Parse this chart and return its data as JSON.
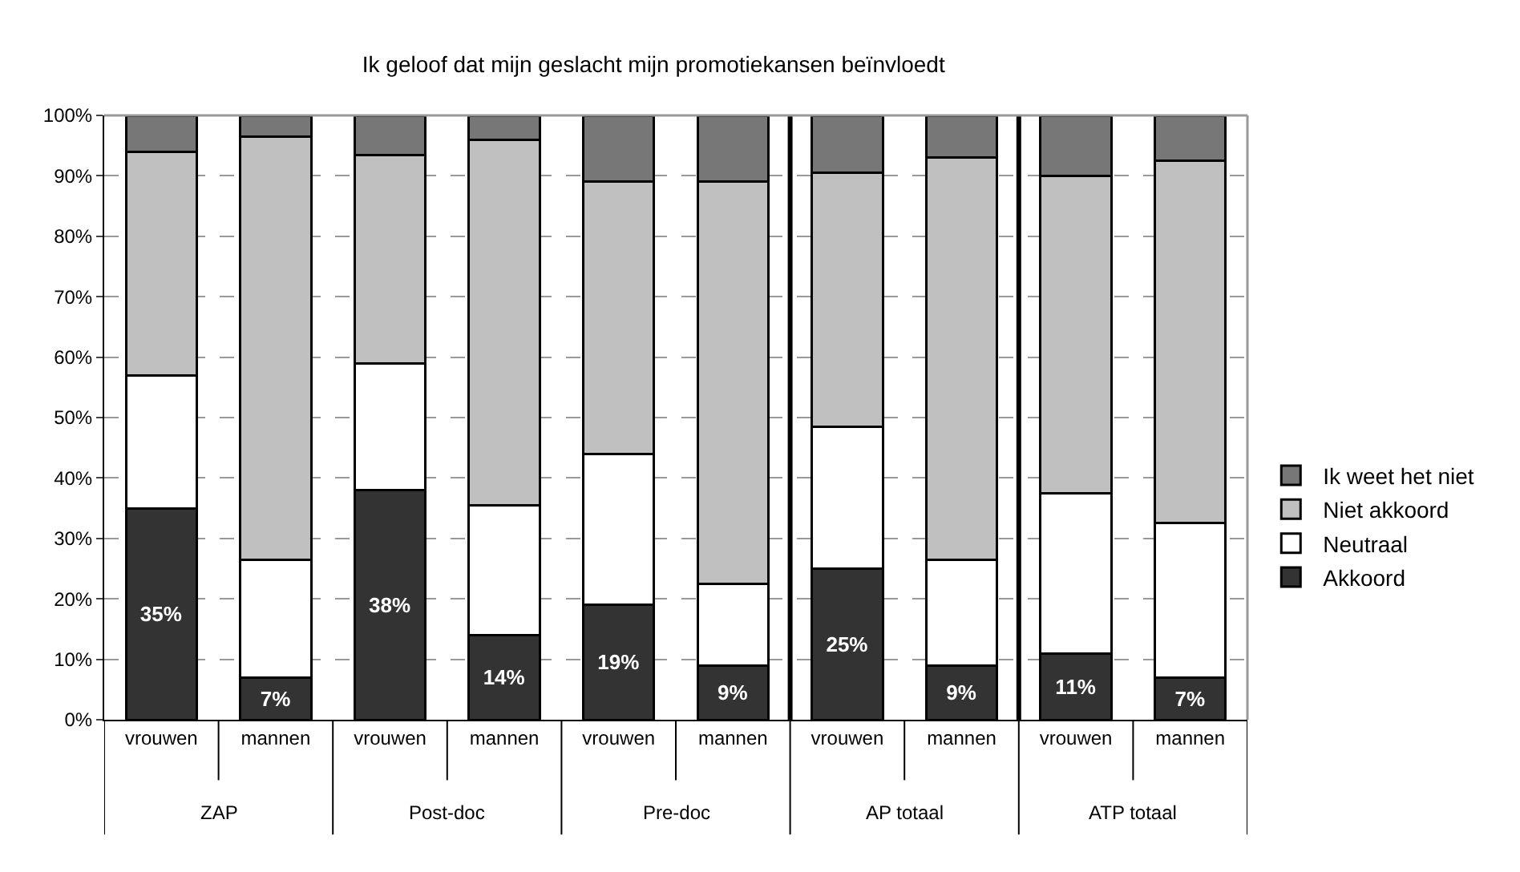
{
  "chart_data": {
    "type": "bar",
    "title": "Ik geloof dat mijn geslacht mijn promotiekansen beïnvloedt",
    "categories": [
      "vrouwen",
      "mannen",
      "vrouwen",
      "mannen",
      "vrouwen",
      "mannen",
      "vrouwen",
      "mannen",
      "vrouwen",
      "mannen"
    ],
    "annotations": [
      "ZAP",
      "Post-doc",
      "Pre-doc",
      "AP totaal",
      "ATP totaal"
    ],
    "stacked": true,
    "series": [
      {
        "name": "Akkoord",
        "color": "#333333",
        "values": [
          35,
          7,
          38,
          14,
          19,
          9,
          25,
          9,
          11,
          7
        ],
        "value_labels": [
          "35%",
          "7%",
          "38%",
          "14%",
          "19%",
          "9%",
          "25%",
          "9%",
          "11%",
          "7%"
        ]
      },
      {
        "name": "Neutraal",
        "color": "#ffffff",
        "values": [
          22,
          19.5,
          21,
          21.5,
          25,
          13.5,
          23.5,
          17.5,
          26.5,
          25.5
        ]
      },
      {
        "name": "Niet akkoord",
        "color": "#c0c0c0",
        "values": [
          37,
          70,
          34.5,
          60.5,
          45,
          66.5,
          42,
          66.5,
          52.5,
          60
        ]
      },
      {
        "name": "Ik weet het niet",
        "color": "#777777",
        "values": [
          6,
          3.5,
          6.5,
          4,
          11,
          11,
          9.5,
          7,
          10,
          7.5
        ]
      }
    ],
    "ylim": [
      0,
      100
    ],
    "yticks": [
      {
        "value": 0,
        "label": "0%"
      },
      {
        "value": 10,
        "label": "10%"
      },
      {
        "value": 20,
        "label": "20%"
      },
      {
        "value": 30,
        "label": "30%"
      },
      {
        "value": 40,
        "label": "40%"
      },
      {
        "value": 50,
        "label": "50%"
      },
      {
        "value": 60,
        "label": "60%"
      },
      {
        "value": 70,
        "label": "70%"
      },
      {
        "value": 80,
        "label": "80%"
      },
      {
        "value": 90,
        "label": "90%"
      },
      {
        "value": 100,
        "label": "100%"
      }
    ],
    "grid": "y",
    "legend": "right"
  }
}
